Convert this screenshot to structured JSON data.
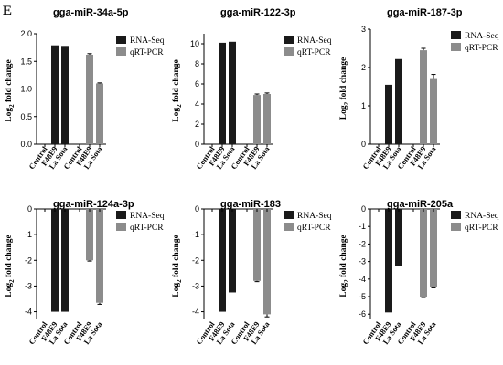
{
  "panel_letter": "E",
  "colors": {
    "rna_seq": "#1a1a1a",
    "qrt_pcr": "#8c8c8c",
    "axis": "#000000",
    "error": "#000000"
  },
  "ylabel": {
    "prefix": "Log",
    "sub": "2",
    "suffix": " fold change"
  },
  "chart_data": [
    {
      "type": "bar",
      "title": "gga-miR-34a-5p",
      "categories": [
        "Control",
        "F48E9",
        "La Sota"
      ],
      "ylim": [
        0,
        2.0
      ],
      "yticks": [
        "0.0",
        "0.5",
        "1.0",
        "1.5",
        "2.0"
      ],
      "ytick_values": [
        0,
        0.5,
        1.0,
        1.5,
        2.0
      ],
      "series": [
        {
          "name": "RNA-Seq",
          "values": [
            0,
            1.79,
            1.78
          ],
          "errors": [
            0,
            0,
            0
          ]
        },
        {
          "name": "qRT-PCR",
          "values": [
            0,
            1.62,
            1.1
          ],
          "errors": [
            0,
            0.02,
            0.01
          ]
        }
      ],
      "legend": "top-right"
    },
    {
      "type": "bar",
      "title": "gga-miR-122-3p",
      "categories": [
        "Control",
        "F48E9",
        "La Sota"
      ],
      "ylim": [
        0,
        11
      ],
      "yticks": [
        "0",
        "2",
        "4",
        "6",
        "8",
        "10"
      ],
      "ytick_values": [
        0,
        2,
        4,
        6,
        8,
        10
      ],
      "series": [
        {
          "name": "RNA-Seq",
          "values": [
            0,
            10.1,
            10.2
          ],
          "errors": [
            0,
            0,
            0
          ]
        },
        {
          "name": "qRT-PCR",
          "values": [
            0,
            4.9,
            5.0
          ],
          "errors": [
            0,
            0.1,
            0.1
          ]
        }
      ],
      "legend": "top-right"
    },
    {
      "type": "bar",
      "title": "gga-miR-187-3p",
      "categories": [
        "Control",
        "F48E9",
        "La Sota"
      ],
      "ylim": [
        0,
        3
      ],
      "yticks": [
        "0",
        "1",
        "2",
        "3"
      ],
      "ytick_values": [
        0,
        1,
        2,
        3
      ],
      "series": [
        {
          "name": "RNA-Seq",
          "values": [
            0,
            1.55,
            2.22
          ],
          "errors": [
            0,
            0,
            0
          ]
        },
        {
          "name": "qRT-PCR",
          "values": [
            0,
            2.45,
            1.7
          ],
          "errors": [
            0,
            0.05,
            0.12
          ]
        }
      ],
      "legend": "top-right"
    },
    {
      "type": "bar",
      "title": "gga-miR-124a-3p",
      "categories": [
        "Control",
        "F48E9",
        "La Sota"
      ],
      "ylim": [
        -4.3,
        0
      ],
      "yticks": [
        "0",
        "-1",
        "-2",
        "-3",
        "-4"
      ],
      "ytick_values": [
        0,
        -1,
        -2,
        -3,
        -4
      ],
      "series": [
        {
          "name": "RNA-Seq",
          "values": [
            0,
            -4.0,
            -4.0
          ],
          "errors": [
            0,
            0,
            0
          ]
        },
        {
          "name": "qRT-PCR",
          "values": [
            0,
            -2.0,
            -3.65
          ],
          "errors": [
            0,
            0.03,
            0.06
          ]
        }
      ],
      "legend": "top-right"
    },
    {
      "type": "bar",
      "title": "gga-miR-183",
      "categories": [
        "Control",
        "F48E9",
        "La Sota"
      ],
      "ylim": [
        -4.3,
        0
      ],
      "yticks": [
        "0",
        "-1",
        "-2",
        "-3",
        "-4"
      ],
      "ytick_values": [
        0,
        -1,
        -2,
        -3,
        -4
      ],
      "series": [
        {
          "name": "RNA-Seq",
          "values": [
            0,
            -4.0,
            -3.25
          ],
          "errors": [
            0,
            0,
            0
          ]
        },
        {
          "name": "qRT-PCR",
          "values": [
            0,
            -2.8,
            -4.1
          ],
          "errors": [
            0,
            0.03,
            0.1
          ]
        }
      ],
      "legend": "top-right"
    },
    {
      "type": "bar",
      "title": "gga-miR-205a",
      "categories": [
        "Control",
        "F48E9",
        "La Sota"
      ],
      "ylim": [
        -6.3,
        0
      ],
      "yticks": [
        "0",
        "-1",
        "-2",
        "-3",
        "-4",
        "-5",
        "-6"
      ],
      "ytick_values": [
        0,
        -1,
        -2,
        -3,
        -4,
        -5,
        -6
      ],
      "series": [
        {
          "name": "RNA-Seq",
          "values": [
            0,
            -5.9,
            -3.25
          ],
          "errors": [
            0,
            0,
            0
          ]
        },
        {
          "name": "qRT-PCR",
          "values": [
            0,
            -5.0,
            -4.45
          ],
          "errors": [
            0,
            0.05,
            0.05
          ]
        }
      ],
      "legend": "top-right"
    }
  ]
}
